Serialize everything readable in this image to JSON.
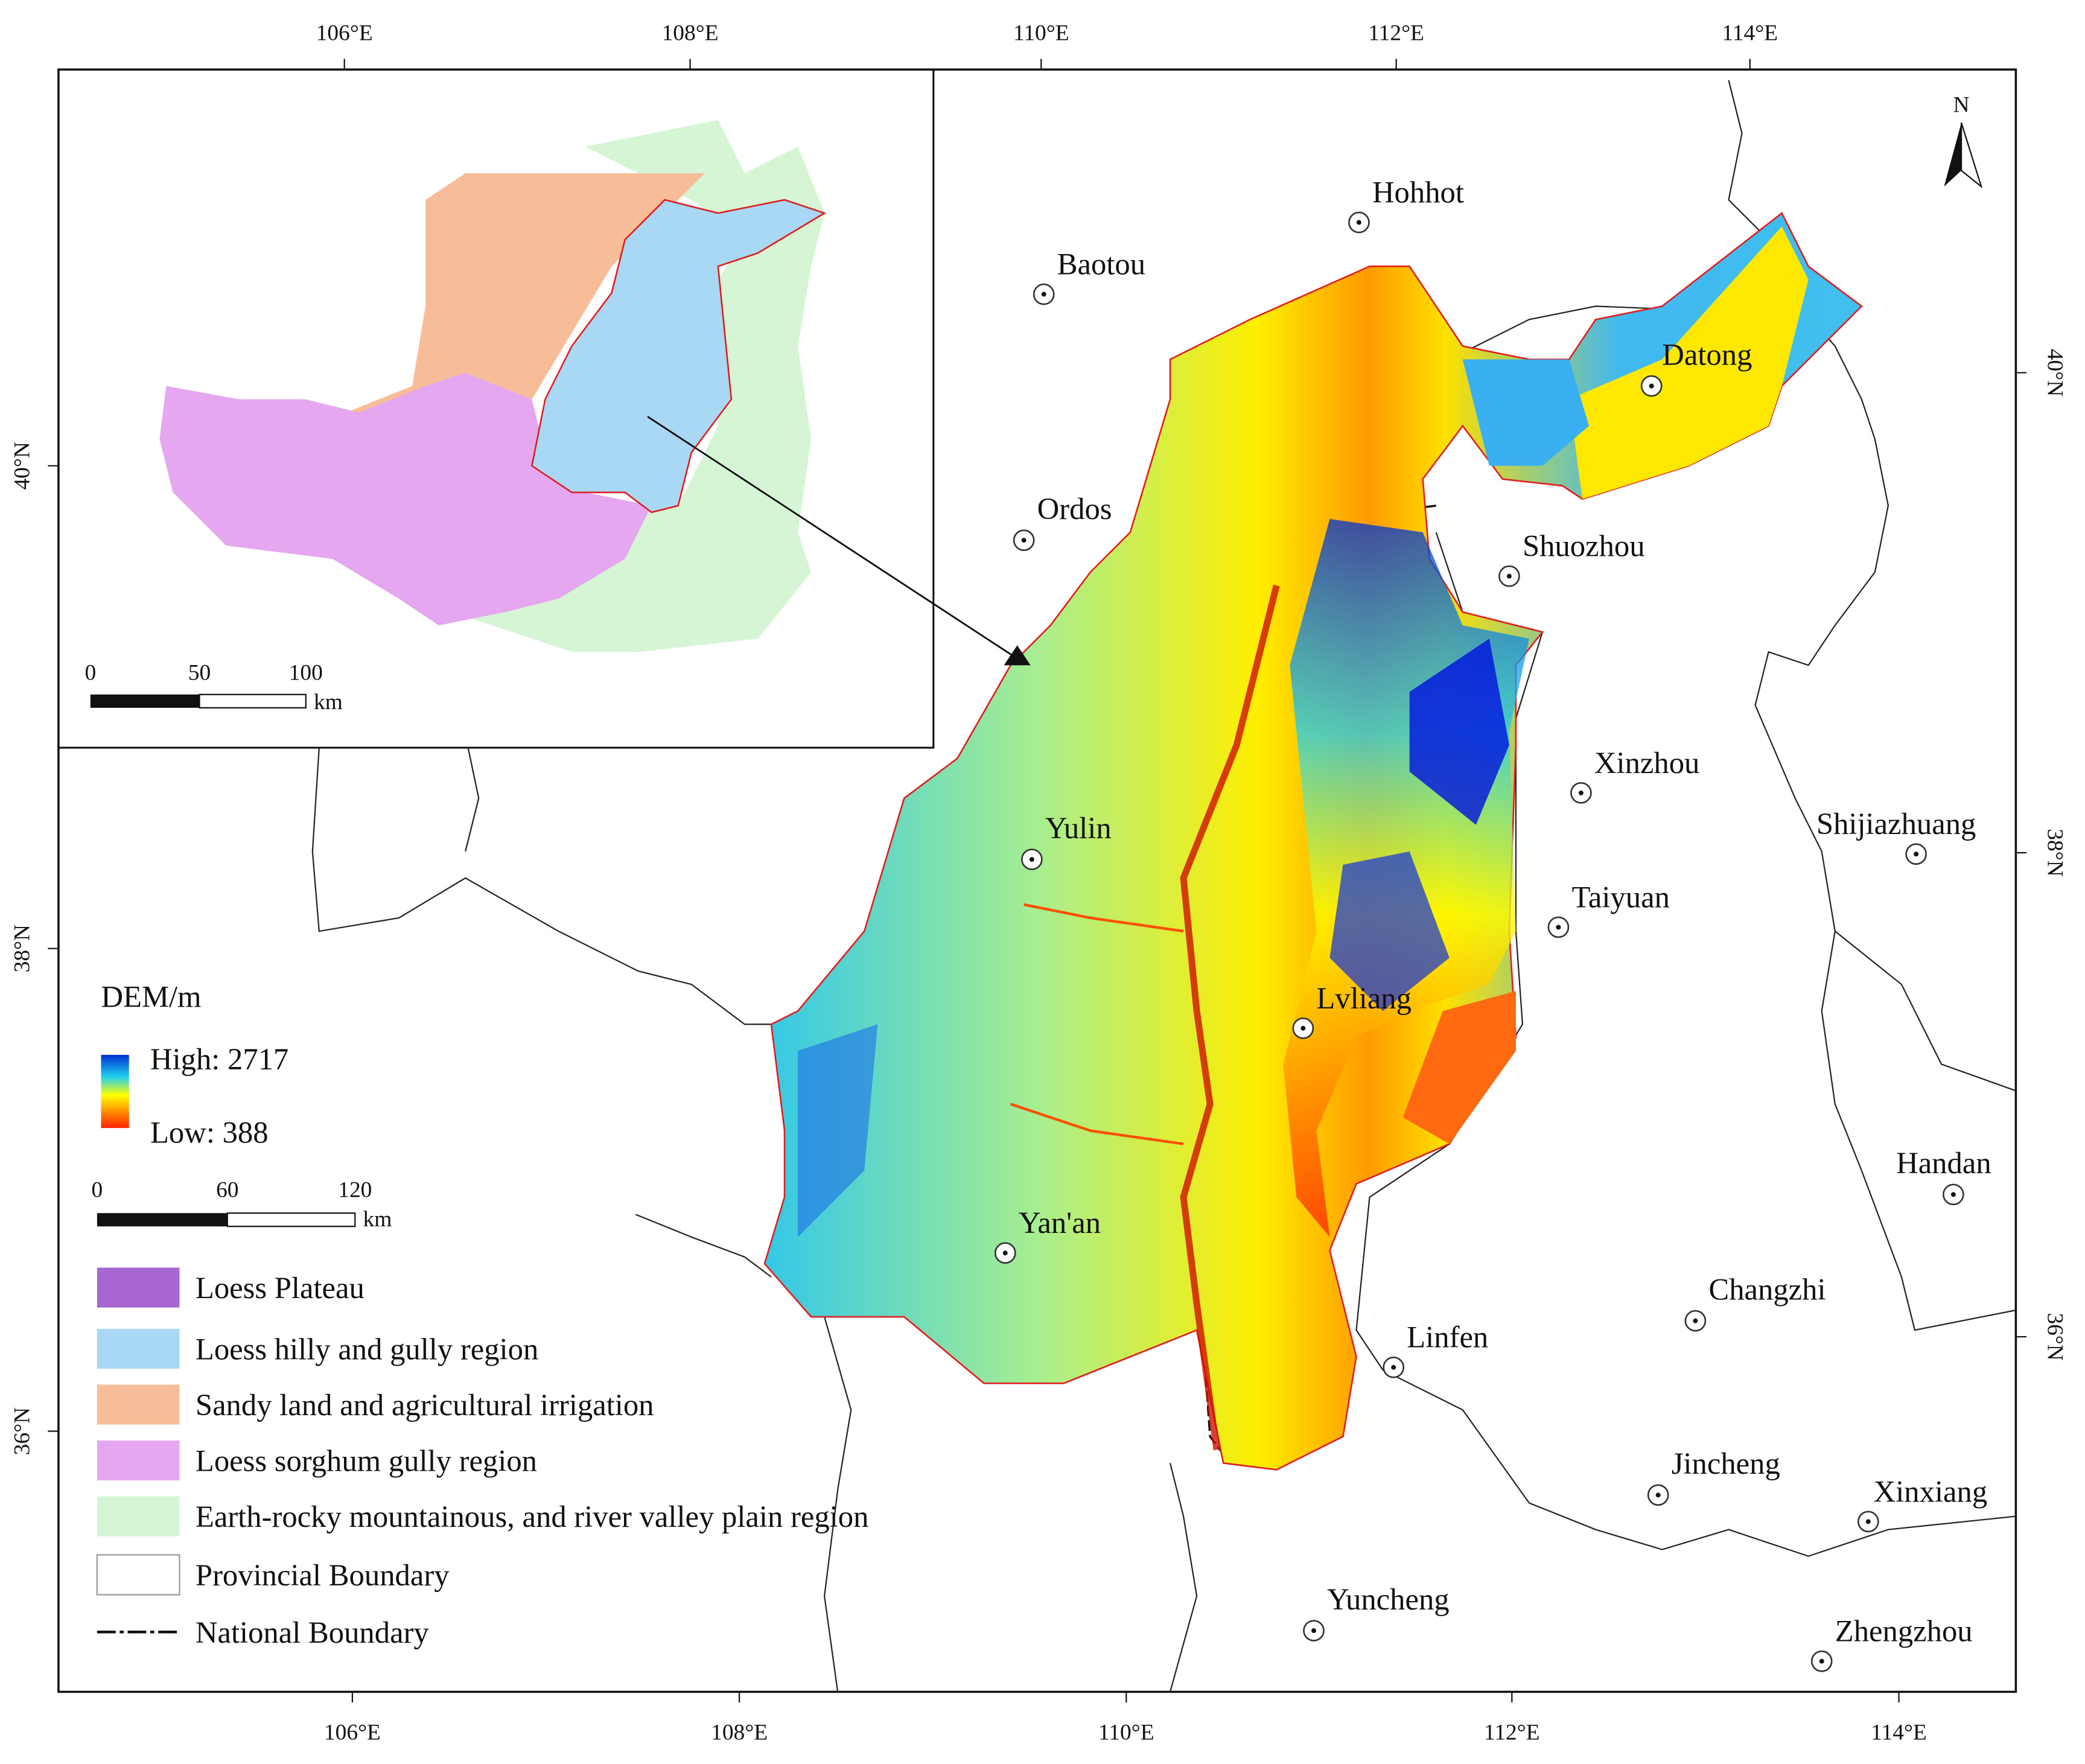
{
  "axes": {
    "top": [
      "106°E",
      "108°E",
      "110°E",
      "112°E",
      "114°E"
    ],
    "bottom": [
      "106°E",
      "108°E",
      "110°E",
      "112°E",
      "114°E"
    ],
    "left": [
      "40°N",
      "38°N",
      "36°N"
    ],
    "right": [
      "40°N",
      "38°N",
      "36°N"
    ]
  },
  "north": "N",
  "cities": [
    "Hohhot",
    "Baotou",
    "Datong",
    "Ordos",
    "Shuozhou",
    "Xinzhou",
    "Shijiazhuang",
    "Yulin",
    "Taiyuan",
    "Lvliang",
    "Handan",
    "Yan'an",
    "Changzhi",
    "Linfen",
    "Jincheng",
    "Xinxiang",
    "Yuncheng",
    "Zhengzhou"
  ],
  "legend": {
    "title": "DEM/m",
    "high": "High: 2717",
    "low": "Low: 388",
    "scale": [
      "0",
      "60",
      "120"
    ],
    "scale_unit": "km",
    "items": [
      "Loess Plateau",
      "Loess hilly and gully region",
      "Sandy land and agricultural irrigation",
      "Loess sorghum gully region",
      "Earth-rocky mountainous, and river valley plain region",
      "Provincial Boundary",
      "National Boundary"
    ]
  },
  "inset": {
    "scale": [
      "0",
      "50",
      "100"
    ],
    "scale_unit": "km"
  }
}
